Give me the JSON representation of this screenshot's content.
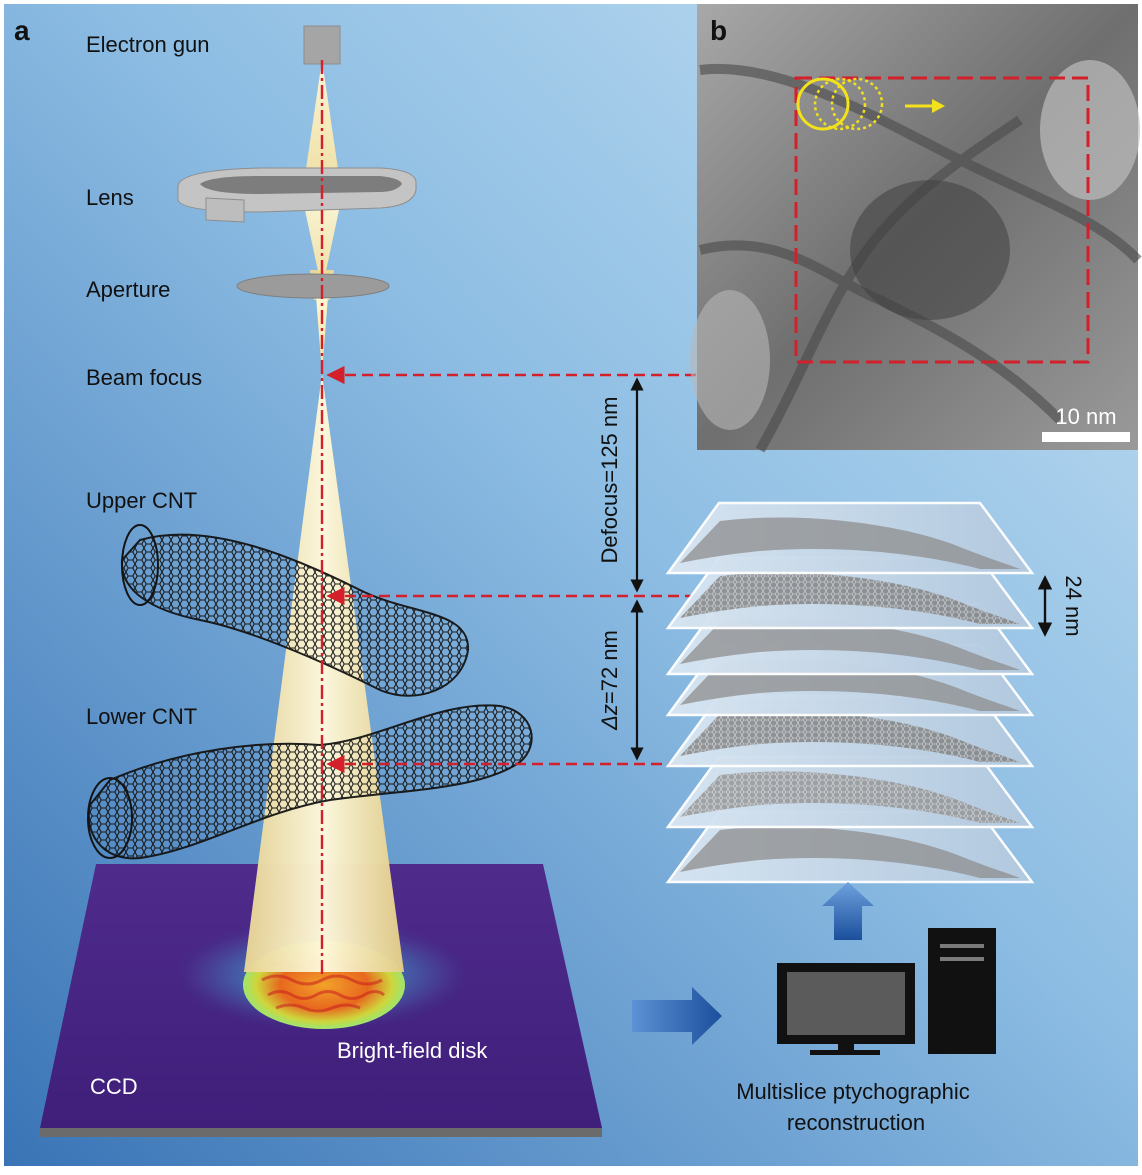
{
  "panels": {
    "a": "a",
    "b": "b"
  },
  "labels": {
    "electron_gun": "Electron gun",
    "lens": "Lens",
    "aperture": "Aperture",
    "beam_focus": "Beam focus",
    "upper_cnt": "Upper CNT",
    "lower_cnt": "Lower CNT",
    "ccd": "CCD",
    "bright_field_disk": "Bright-field disk"
  },
  "dimensions": {
    "defocus": "Defocus=125 nm",
    "delta_z_symbol": "Δz",
    "delta_z_value": "=72 nm",
    "slice_spacing": "24 nm"
  },
  "inset": {
    "scale_bar": "10 nm"
  },
  "reconstruction": {
    "line1": "Multislice ptychographic",
    "line2": "reconstruction"
  },
  "colors": {
    "background_top": "#a9d0ea",
    "background_bottom": "#3d79b9",
    "beam": "#f6e7a6",
    "dashed_red": "#d3202a",
    "ccd": "#4a2a86",
    "probe_circle": "#f3e11b",
    "computer": "#111111",
    "arrow_blue": "#1f5aa8"
  }
}
